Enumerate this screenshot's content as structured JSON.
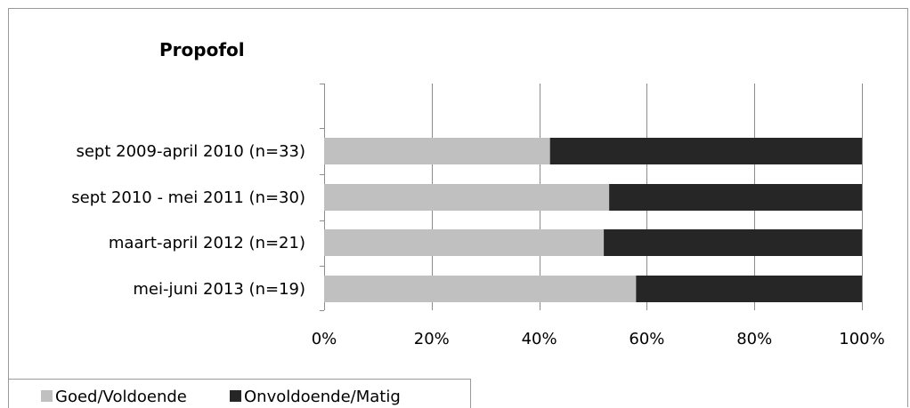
{
  "chart_data": {
    "type": "bar",
    "orientation": "horizontal",
    "stacked": "100%",
    "title": "Propofol",
    "categories": [
      "sept 2009-april 2010 (n=33)",
      "sept 2010 - mei 2011 (n=30)",
      "maart-april 2012 (n=21)",
      "mei-juni 2013 (n=19)"
    ],
    "series": [
      {
        "name": "Goed/Voldoende",
        "color": "#c0c0c0",
        "values": [
          42,
          53,
          52,
          58
        ]
      },
      {
        "name": "Onvoldoende/Matig",
        "color": "#262626",
        "values": [
          58,
          47,
          48,
          42
        ]
      }
    ],
    "x_ticks": [
      "0%",
      "20%",
      "40%",
      "60%",
      "80%",
      "100%"
    ],
    "xlim": [
      0,
      100
    ],
    "grid": true,
    "legend_position": "bottom-left"
  }
}
